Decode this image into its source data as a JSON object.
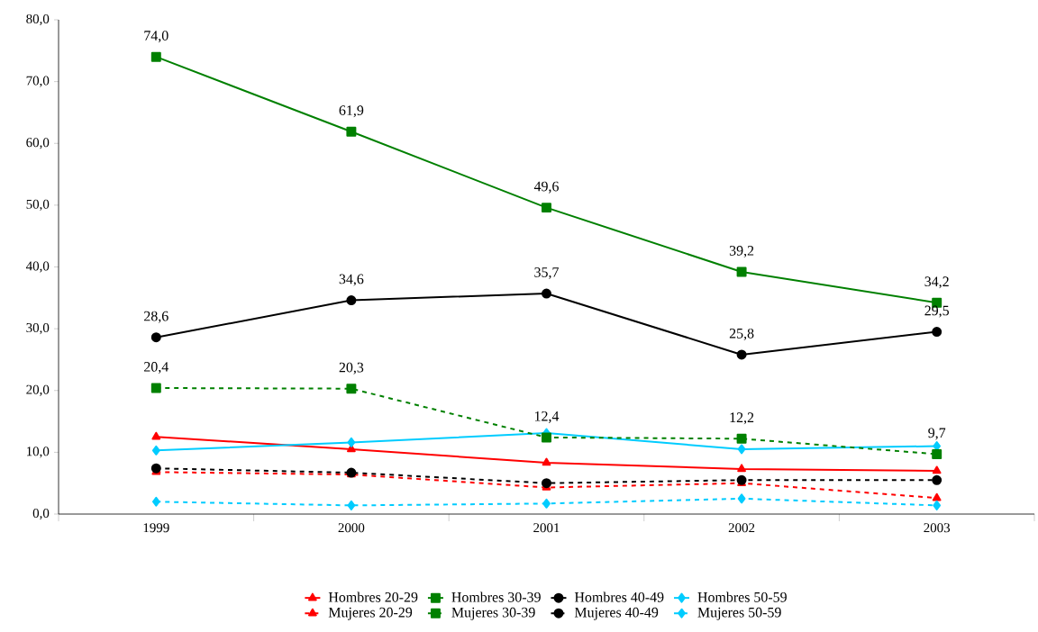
{
  "chart_data": {
    "type": "line",
    "categories": [
      "1999",
      "2000",
      "2001",
      "2002",
      "2003"
    ],
    "ylim": [
      0,
      80
    ],
    "yticks": [
      {
        "value": 0,
        "label": "0,0"
      },
      {
        "value": 10,
        "label": "10,0"
      },
      {
        "value": 20,
        "label": "20,0"
      },
      {
        "value": 30,
        "label": "30,0"
      },
      {
        "value": 40,
        "label": "40,0"
      },
      {
        "value": 50,
        "label": "50,0"
      },
      {
        "value": 60,
        "label": "60,0"
      },
      {
        "value": 70,
        "label": "70,0"
      },
      {
        "value": 80,
        "label": "80,0"
      }
    ],
    "grid": false,
    "legend": "bottom",
    "series": [
      {
        "name": "Hombres 20-29",
        "color": "#ff0000",
        "marker": "triangle",
        "line_style": "solid",
        "values": [
          12.5,
          10.5,
          8.3,
          7.3,
          7.0
        ]
      },
      {
        "name": "Hombres 30-39",
        "color": "#008000",
        "marker": "square",
        "line_style": "solid",
        "values": [
          74.0,
          61.9,
          49.6,
          39.2,
          34.2
        ],
        "value_labels": [
          "74,0",
          "61,9",
          "49,6",
          "39,2",
          "34,2"
        ]
      },
      {
        "name": "Hombres 40-49",
        "color": "#000000",
        "marker": "circle",
        "line_style": "solid",
        "values": [
          28.6,
          34.6,
          35.7,
          25.8,
          29.5
        ],
        "value_labels": [
          "28,6",
          "34,6",
          "35,7",
          "25,8",
          "29,5"
        ]
      },
      {
        "name": "Hombres 50-59",
        "color": "#00ccff",
        "marker": "diamond",
        "line_style": "solid",
        "values": [
          10.3,
          11.6,
          13.1,
          10.5,
          11.0
        ]
      },
      {
        "name": "Mujeres 20-29",
        "color": "#ff0000",
        "marker": "triangle",
        "line_style": "dashed",
        "values": [
          6.8,
          6.4,
          4.3,
          5.0,
          2.6
        ]
      },
      {
        "name": "Mujeres 30-39",
        "color": "#008000",
        "marker": "square",
        "line_style": "dashed",
        "values": [
          20.4,
          20.3,
          12.4,
          12.2,
          9.7
        ],
        "value_labels": [
          "20,4",
          "20,3",
          "12,4",
          "12,2",
          "9,7"
        ]
      },
      {
        "name": "Mujeres 40-49",
        "color": "#000000",
        "marker": "circle",
        "line_style": "dashed",
        "values": [
          7.4,
          6.7,
          5.0,
          5.5,
          5.5
        ]
      },
      {
        "name": "Mujeres 50-59",
        "color": "#00ccff",
        "marker": "diamond",
        "line_style": "dashed",
        "values": [
          2.0,
          1.4,
          1.7,
          2.5,
          1.4
        ]
      }
    ]
  }
}
